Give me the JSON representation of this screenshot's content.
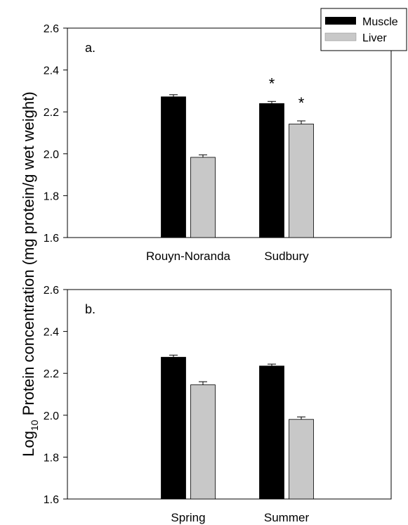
{
  "chart_data": [
    {
      "type": "bar",
      "panel_label": "a.",
      "categories": [
        "Rouyn-Noranda",
        "Sudbury"
      ],
      "series": [
        {
          "name": "Muscle",
          "values": [
            2.272,
            2.24
          ],
          "errors": [
            0.01,
            0.01
          ],
          "color": "#000000"
        },
        {
          "name": "Liver",
          "values": [
            1.983,
            2.142
          ],
          "errors": [
            0.012,
            0.015
          ],
          "color": "#c8c8c8"
        }
      ],
      "annotations": [
        {
          "category": 1,
          "series": 0,
          "text": "*"
        },
        {
          "category": 1,
          "series": 1,
          "text": "*"
        }
      ],
      "ylim": [
        1.6,
        2.6
      ],
      "yticks": [
        "1.6",
        "1.8",
        "2.0",
        "2.2",
        "2.4",
        "2.6"
      ],
      "legend": {
        "placement": "top-right"
      }
    },
    {
      "type": "bar",
      "panel_label": "b.",
      "categories": [
        "Spring",
        "Summer"
      ],
      "series": [
        {
          "name": "Muscle",
          "values": [
            2.277,
            2.235
          ],
          "errors": [
            0.01,
            0.009
          ],
          "color": "#000000"
        },
        {
          "name": "Liver",
          "values": [
            2.145,
            1.98
          ],
          "errors": [
            0.015,
            0.012
          ],
          "color": "#c8c8c8"
        }
      ],
      "annotations": [],
      "ylim": [
        1.6,
        2.6
      ],
      "yticks": [
        "1.6",
        "1.8",
        "2.0",
        "2.2",
        "2.4",
        "2.6"
      ]
    }
  ],
  "ylabel": {
    "prefix": "Log",
    "subscript": "10",
    "rest": " Protein concentration (mg protein/g wet weight)"
  },
  "legend_entries": [
    {
      "name": "Muscle",
      "color": "#000000"
    },
    {
      "name": "Liver",
      "color": "#c8c8c8"
    }
  ]
}
